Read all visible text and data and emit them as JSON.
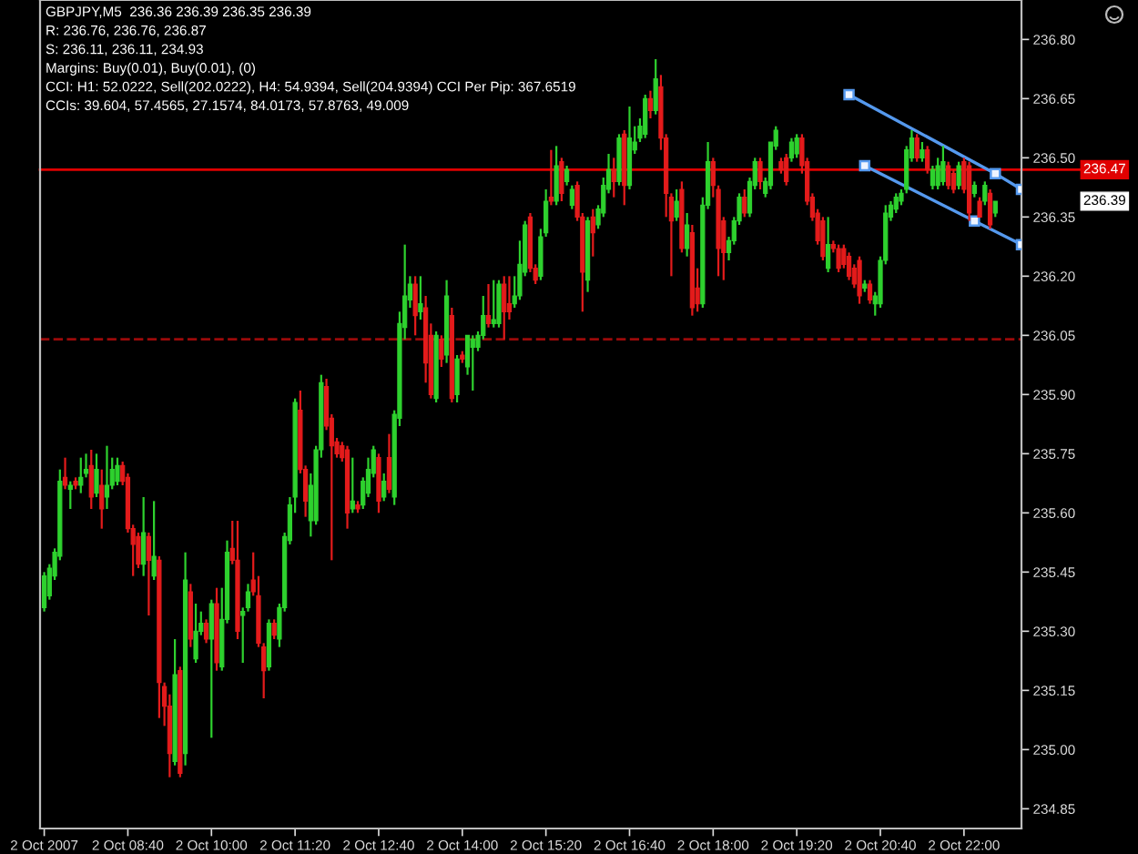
{
  "chart_data": {
    "type": "candlestick",
    "title": "GBPJPY,M5  236.36 236.39 236.35 236.39",
    "annotations": [
      "R: 236.76, 236.76, 236.87",
      "S: 236.11, 236.11, 234.93",
      "Margins: Buy(0.01), Buy(0.01), (0)",
      "CCI: H1: 52.0222, Sell(202.0222), H4: 54.9394, Sell(204.9394) CCI Per Pip: 367.6519",
      "CCIs: 39.604, 57.4565, 27.1574, 84.0173, 57.8763, 49.009",
      "236.39"
    ],
    "x": [
      "2007-10-02T07:20",
      "2007-10-02T07:25",
      "2007-10-02T07:30",
      "2007-10-02T07:35",
      "2007-10-02T07:40",
      "2007-10-02T07:45",
      "2007-10-02T07:50",
      "2007-10-02T07:55",
      "2007-10-02T08:00",
      "2007-10-02T08:05",
      "2007-10-02T08:10",
      "2007-10-02T08:15",
      "2007-10-02T08:20",
      "2007-10-02T08:25",
      "2007-10-02T08:30",
      "2007-10-02T08:35",
      "2007-10-02T08:40",
      "2007-10-02T08:45",
      "2007-10-02T08:50",
      "2007-10-02T08:55",
      "2007-10-02T09:00",
      "2007-10-02T09:05",
      "2007-10-02T09:10",
      "2007-10-02T09:15",
      "2007-10-02T09:20",
      "2007-10-02T09:25",
      "2007-10-02T09:30",
      "2007-10-02T09:35",
      "2007-10-02T09:40",
      "2007-10-02T09:45",
      "2007-10-02T09:50",
      "2007-10-02T09:55",
      "2007-10-02T10:00",
      "2007-10-02T10:05",
      "2007-10-02T10:10",
      "2007-10-02T10:15",
      "2007-10-02T10:20",
      "2007-10-02T10:25",
      "2007-10-02T10:30",
      "2007-10-02T10:35",
      "2007-10-02T10:40",
      "2007-10-02T10:45",
      "2007-10-02T10:50",
      "2007-10-02T10:55",
      "2007-10-02T11:00",
      "2007-10-02T11:05",
      "2007-10-02T11:10",
      "2007-10-02T11:15",
      "2007-10-02T11:20",
      "2007-10-02T11:25",
      "2007-10-02T11:30",
      "2007-10-02T11:35",
      "2007-10-02T11:40",
      "2007-10-02T11:45",
      "2007-10-02T11:50",
      "2007-10-02T11:55",
      "2007-10-02T12:00",
      "2007-10-02T12:05",
      "2007-10-02T12:10",
      "2007-10-02T12:15",
      "2007-10-02T12:20",
      "2007-10-02T12:25",
      "2007-10-02T12:30",
      "2007-10-02T12:35",
      "2007-10-02T12:40",
      "2007-10-02T12:45",
      "2007-10-02T12:50",
      "2007-10-02T12:55",
      "2007-10-02T13:00",
      "2007-10-02T13:05",
      "2007-10-02T13:10",
      "2007-10-02T13:15",
      "2007-10-02T13:20",
      "2007-10-02T13:25",
      "2007-10-02T13:30",
      "2007-10-02T13:35",
      "2007-10-02T13:40",
      "2007-10-02T13:45",
      "2007-10-02T13:50",
      "2007-10-02T13:55",
      "2007-10-02T14:00",
      "2007-10-02T14:05",
      "2007-10-02T14:10",
      "2007-10-02T14:15",
      "2007-10-02T14:20",
      "2007-10-02T14:25",
      "2007-10-02T14:30",
      "2007-10-02T14:35",
      "2007-10-02T14:40",
      "2007-10-02T14:45",
      "2007-10-02T14:50",
      "2007-10-02T14:55",
      "2007-10-02T15:00",
      "2007-10-02T15:05",
      "2007-10-02T15:10",
      "2007-10-02T15:15",
      "2007-10-02T15:20",
      "2007-10-02T15:25",
      "2007-10-02T15:30",
      "2007-10-02T15:35",
      "2007-10-02T15:40",
      "2007-10-02T15:45",
      "2007-10-02T15:50",
      "2007-10-02T15:55",
      "2007-10-02T16:00",
      "2007-10-02T16:05",
      "2007-10-02T16:10",
      "2007-10-02T16:15",
      "2007-10-02T16:20",
      "2007-10-02T16:25",
      "2007-10-02T16:30",
      "2007-10-02T16:35",
      "2007-10-02T16:40",
      "2007-10-02T16:45",
      "2007-10-02T16:50",
      "2007-10-02T16:55",
      "2007-10-02T17:00",
      "2007-10-02T17:05",
      "2007-10-02T17:10",
      "2007-10-02T17:15",
      "2007-10-02T17:20",
      "2007-10-02T17:25",
      "2007-10-02T17:30",
      "2007-10-02T17:35",
      "2007-10-02T17:40",
      "2007-10-02T17:45",
      "2007-10-02T17:50",
      "2007-10-02T17:55",
      "2007-10-02T18:00",
      "2007-10-02T18:05",
      "2007-10-02T18:10",
      "2007-10-02T18:15",
      "2007-10-02T18:20",
      "2007-10-02T18:25",
      "2007-10-02T18:30",
      "2007-10-02T18:35",
      "2007-10-02T18:40",
      "2007-10-02T18:45",
      "2007-10-02T18:50",
      "2007-10-02T18:55",
      "2007-10-02T19:00",
      "2007-10-02T19:05",
      "2007-10-02T19:10",
      "2007-10-02T19:15",
      "2007-10-02T19:20",
      "2007-10-02T19:25",
      "2007-10-02T19:30",
      "2007-10-02T19:35",
      "2007-10-02T19:40",
      "2007-10-02T19:45",
      "2007-10-02T19:50",
      "2007-10-02T19:55",
      "2007-10-02T20:00",
      "2007-10-02T20:05",
      "2007-10-02T20:10",
      "2007-10-02T20:15",
      "2007-10-02T20:20",
      "2007-10-02T20:25",
      "2007-10-02T20:30",
      "2007-10-02T20:35",
      "2007-10-02T20:40",
      "2007-10-02T20:45",
      "2007-10-02T20:50",
      "2007-10-02T20:55",
      "2007-10-02T21:00",
      "2007-10-02T21:05",
      "2007-10-02T21:10",
      "2007-10-02T21:15",
      "2007-10-02T21:20",
      "2007-10-02T21:25",
      "2007-10-02T21:30",
      "2007-10-02T21:35",
      "2007-10-02T21:40",
      "2007-10-02T21:45",
      "2007-10-02T21:50",
      "2007-10-02T21:55",
      "2007-10-02T22:00",
      "2007-10-02T22:05",
      "2007-10-02T22:10",
      "2007-10-02T22:15",
      "2007-10-02T22:20",
      "2007-10-02T22:25",
      "2007-10-02T22:30"
    ],
    "ohlc": [
      [
        235.36,
        235.45,
        235.35,
        235.44
      ],
      [
        235.39,
        235.47,
        235.38,
        235.46
      ],
      [
        235.44,
        235.51,
        235.43,
        235.5
      ],
      [
        235.49,
        235.71,
        235.48,
        235.68
      ],
      [
        235.69,
        235.74,
        235.66,
        235.67
      ],
      [
        235.66,
        235.68,
        235.61,
        235.67
      ],
      [
        235.68,
        235.69,
        235.66,
        235.67
      ],
      [
        235.67,
        235.74,
        235.65,
        235.69
      ],
      [
        235.7,
        235.75,
        235.69,
        235.71
      ],
      [
        235.72,
        235.76,
        235.61,
        235.64
      ],
      [
        235.65,
        235.75,
        235.64,
        235.71
      ],
      [
        235.67,
        235.71,
        235.56,
        235.61
      ],
      [
        235.64,
        235.77,
        235.61,
        235.67
      ],
      [
        235.67,
        235.74,
        235.66,
        235.71
      ],
      [
        235.68,
        235.74,
        235.67,
        235.72
      ],
      [
        235.72,
        235.73,
        235.67,
        235.68
      ],
      [
        235.69,
        235.7,
        235.55,
        235.56
      ],
      [
        235.56,
        235.57,
        235.44,
        235.52
      ],
      [
        235.54,
        235.55,
        235.46,
        235.47
      ],
      [
        235.47,
        235.64,
        235.44,
        235.55
      ],
      [
        235.54,
        235.55,
        235.34,
        235.48
      ],
      [
        235.44,
        235.63,
        235.43,
        235.49
      ],
      [
        235.48,
        235.49,
        235.08,
        235.17
      ],
      [
        235.16,
        235.17,
        235.06,
        235.11
      ],
      [
        235.11,
        235.14,
        234.93,
        234.99
      ],
      [
        234.97,
        235.28,
        234.96,
        235.19
      ],
      [
        235.2,
        235.21,
        234.93,
        234.94
      ],
      [
        234.99,
        235.5,
        234.96,
        235.43
      ],
      [
        235.4,
        235.42,
        235.26,
        235.28
      ],
      [
        235.23,
        235.37,
        235.22,
        235.3
      ],
      [
        235.3,
        235.35,
        235.29,
        235.32
      ],
      [
        235.32,
        235.33,
        235.27,
        235.28
      ],
      [
        235.28,
        235.38,
        235.03,
        235.37
      ],
      [
        235.37,
        235.41,
        235.2,
        235.22
      ],
      [
        235.21,
        235.41,
        235.2,
        235.33
      ],
      [
        235.33,
        235.53,
        235.32,
        235.5
      ],
      [
        235.51,
        235.58,
        235.47,
        235.48
      ],
      [
        235.48,
        235.58,
        235.28,
        235.3
      ],
      [
        235.34,
        235.36,
        235.22,
        235.35
      ],
      [
        235.36,
        235.42,
        235.35,
        235.4
      ],
      [
        235.43,
        235.5,
        235.39,
        235.4
      ],
      [
        235.39,
        235.44,
        235.26,
        235.27
      ],
      [
        235.26,
        235.27,
        235.13,
        235.2
      ],
      [
        235.21,
        235.33,
        235.2,
        235.32
      ],
      [
        235.32,
        235.33,
        235.28,
        235.29
      ],
      [
        235.28,
        235.37,
        235.26,
        235.36
      ],
      [
        235.36,
        235.55,
        235.35,
        235.54
      ],
      [
        235.53,
        235.64,
        235.52,
        235.62
      ],
      [
        235.64,
        235.89,
        235.6,
        235.88
      ],
      [
        235.86,
        235.91,
        235.7,
        235.71
      ],
      [
        235.71,
        235.72,
        235.59,
        235.63
      ],
      [
        235.58,
        235.7,
        235.54,
        235.67
      ],
      [
        235.58,
        235.77,
        235.57,
        235.76
      ],
      [
        235.76,
        235.95,
        235.74,
        235.93
      ],
      [
        235.92,
        235.94,
        235.81,
        235.82
      ],
      [
        235.84,
        235.85,
        235.48,
        235.77
      ],
      [
        235.78,
        235.79,
        235.74,
        235.75
      ],
      [
        235.77,
        235.78,
        235.73,
        235.74
      ],
      [
        235.76,
        235.77,
        235.56,
        235.6
      ],
      [
        235.61,
        235.74,
        235.6,
        235.63
      ],
      [
        235.62,
        235.63,
        235.6,
        235.61
      ],
      [
        235.62,
        235.69,
        235.61,
        235.68
      ],
      [
        235.65,
        235.74,
        235.64,
        235.71
      ],
      [
        235.7,
        235.77,
        235.69,
        235.76
      ],
      [
        235.74,
        235.75,
        235.6,
        235.63
      ],
      [
        235.64,
        235.7,
        235.63,
        235.68
      ],
      [
        235.74,
        235.8,
        235.65,
        235.66
      ],
      [
        235.64,
        235.86,
        235.62,
        235.85
      ],
      [
        235.84,
        236.11,
        235.82,
        236.08
      ],
      [
        236.07,
        236.28,
        236.04,
        236.15
      ],
      [
        236.14,
        236.2,
        236.12,
        236.18
      ],
      [
        236.18,
        236.2,
        236.05,
        236.1
      ],
      [
        236.11,
        236.2,
        236.09,
        236.13
      ],
      [
        236.12,
        236.15,
        235.93,
        235.98
      ],
      [
        236.05,
        236.08,
        235.89,
        235.9
      ],
      [
        235.89,
        236.06,
        235.88,
        236.05
      ],
      [
        236.04,
        236.05,
        235.97,
        235.99
      ],
      [
        236.0,
        236.19,
        235.98,
        236.15
      ],
      [
        236.1,
        236.12,
        235.88,
        235.89
      ],
      [
        235.9,
        236.0,
        235.88,
        235.99
      ],
      [
        236.0,
        236.01,
        235.98,
        235.99
      ],
      [
        235.97,
        236.05,
        235.95,
        236.05
      ],
      [
        236.02,
        236.05,
        235.91,
        236.04
      ],
      [
        236.02,
        236.06,
        236.01,
        236.05
      ],
      [
        236.05,
        236.15,
        236.04,
        236.1
      ],
      [
        236.1,
        236.18,
        236.07,
        236.08
      ],
      [
        236.08,
        236.19,
        236.07,
        236.09
      ],
      [
        236.08,
        236.19,
        236.07,
        236.18
      ],
      [
        236.18,
        236.2,
        236.04,
        236.11
      ],
      [
        236.13,
        236.2,
        236.09,
        236.11
      ],
      [
        236.13,
        236.2,
        236.12,
        236.15
      ],
      [
        236.15,
        236.29,
        236.14,
        236.23
      ],
      [
        236.21,
        236.34,
        236.2,
        236.33
      ],
      [
        236.35,
        236.36,
        236.21,
        236.22
      ],
      [
        236.22,
        236.23,
        236.18,
        236.19
      ],
      [
        236.2,
        236.32,
        236.19,
        236.3
      ],
      [
        236.31,
        236.42,
        236.3,
        236.39
      ],
      [
        236.4,
        236.52,
        236.38,
        236.39
      ],
      [
        236.39,
        236.53,
        236.38,
        236.48
      ],
      [
        236.49,
        236.5,
        236.39,
        236.41
      ],
      [
        236.44,
        236.48,
        236.43,
        236.47
      ],
      [
        236.38,
        236.43,
        236.37,
        236.42
      ],
      [
        236.43,
        236.44,
        236.34,
        236.35
      ],
      [
        236.35,
        236.36,
        236.11,
        236.21
      ],
      [
        236.19,
        236.35,
        236.16,
        236.34
      ],
      [
        236.35,
        236.37,
        236.25,
        236.31
      ],
      [
        236.33,
        236.38,
        236.32,
        236.37
      ],
      [
        236.36,
        236.45,
        236.35,
        236.43
      ],
      [
        236.42,
        236.51,
        236.41,
        236.47
      ],
      [
        236.47,
        236.5,
        236.4,
        236.44
      ],
      [
        236.44,
        236.56,
        236.43,
        236.55
      ],
      [
        236.56,
        236.57,
        236.38,
        236.43
      ],
      [
        236.43,
        236.63,
        236.42,
        236.55
      ],
      [
        236.52,
        236.58,
        236.51,
        236.54
      ],
      [
        236.55,
        236.6,
        236.54,
        236.58
      ],
      [
        236.56,
        236.66,
        236.55,
        236.65
      ],
      [
        236.65,
        236.67,
        236.6,
        236.62
      ],
      [
        236.62,
        236.75,
        236.61,
        236.7
      ],
      [
        236.68,
        236.71,
        236.52,
        236.55
      ],
      [
        236.55,
        236.56,
        236.35,
        236.41
      ],
      [
        236.4,
        236.41,
        236.2,
        236.34
      ],
      [
        236.35,
        236.42,
        236.34,
        236.39
      ],
      [
        236.42,
        236.44,
        236.26,
        236.27
      ],
      [
        236.27,
        236.36,
        236.25,
        236.33
      ],
      [
        236.31,
        236.33,
        236.1,
        236.12
      ],
      [
        236.17,
        236.22,
        236.11,
        236.13
      ],
      [
        236.13,
        236.4,
        236.12,
        236.38
      ],
      [
        236.38,
        236.54,
        236.37,
        236.49
      ],
      [
        236.49,
        236.5,
        236.4,
        236.43
      ],
      [
        236.42,
        236.43,
        236.2,
        236.27
      ],
      [
        236.34,
        236.35,
        236.19,
        236.26
      ],
      [
        236.26,
        236.3,
        236.24,
        236.29
      ],
      [
        236.29,
        236.35,
        236.28,
        236.34
      ],
      [
        236.34,
        236.41,
        236.33,
        236.4
      ],
      [
        236.4,
        236.42,
        236.35,
        236.36
      ],
      [
        236.36,
        236.45,
        236.35,
        236.44
      ],
      [
        236.43,
        236.5,
        236.42,
        236.49
      ],
      [
        236.49,
        236.5,
        236.42,
        236.44
      ],
      [
        236.41,
        236.45,
        236.4,
        236.44
      ],
      [
        236.43,
        236.54,
        236.42,
        236.54
      ],
      [
        236.53,
        236.58,
        236.52,
        236.57
      ],
      [
        236.49,
        236.5,
        236.46,
        236.47
      ],
      [
        236.5,
        236.51,
        236.43,
        236.44
      ],
      [
        236.5,
        236.55,
        236.49,
        236.54
      ],
      [
        236.51,
        236.56,
        236.5,
        236.55
      ],
      [
        236.55,
        236.56,
        236.46,
        236.48
      ],
      [
        236.49,
        236.5,
        236.38,
        236.39
      ],
      [
        236.4,
        236.41,
        236.34,
        236.35
      ],
      [
        236.36,
        236.37,
        236.28,
        236.29
      ],
      [
        236.34,
        236.35,
        236.24,
        236.25
      ],
      [
        236.22,
        236.35,
        236.21,
        236.28
      ],
      [
        236.28,
        236.29,
        236.26,
        236.27
      ],
      [
        236.27,
        236.28,
        236.21,
        236.22
      ],
      [
        236.27,
        236.28,
        236.22,
        236.23
      ],
      [
        236.25,
        236.26,
        236.19,
        236.2
      ],
      [
        236.22,
        236.23,
        236.17,
        236.18
      ],
      [
        236.24,
        236.25,
        236.13,
        236.15
      ],
      [
        236.17,
        236.19,
        236.16,
        236.18
      ],
      [
        236.18,
        236.19,
        236.13,
        236.14
      ],
      [
        236.13,
        236.16,
        236.1,
        236.15
      ],
      [
        236.13,
        236.25,
        236.12,
        236.24
      ],
      [
        236.24,
        236.38,
        236.23,
        236.36
      ],
      [
        236.35,
        236.39,
        236.34,
        236.38
      ],
      [
        236.37,
        236.41,
        236.36,
        236.4
      ],
      [
        236.39,
        236.42,
        236.38,
        236.41
      ],
      [
        236.42,
        236.53,
        236.41,
        236.52
      ],
      [
        236.5,
        236.57,
        236.49,
        236.55
      ],
      [
        236.55,
        236.56,
        236.49,
        236.5
      ],
      [
        236.5,
        236.54,
        236.49,
        236.52
      ],
      [
        236.52,
        236.53,
        236.46,
        236.47
      ],
      [
        236.43,
        236.48,
        236.42,
        236.47
      ],
      [
        236.43,
        236.5,
        236.42,
        236.48
      ],
      [
        236.44,
        236.53,
        236.43,
        236.49
      ],
      [
        236.48,
        236.49,
        236.42,
        236.43
      ],
      [
        236.46,
        236.47,
        236.41,
        236.42
      ],
      [
        236.43,
        236.49,
        236.42,
        236.48
      ],
      [
        236.49,
        236.5,
        236.41,
        236.42
      ],
      [
        236.48,
        236.49,
        236.34,
        236.36
      ],
      [
        236.41,
        236.44,
        236.4,
        236.43
      ],
      [
        236.39,
        236.4,
        236.35,
        236.35
      ],
      [
        236.39,
        236.44,
        236.38,
        236.43
      ],
      [
        236.41,
        236.42,
        236.32,
        236.33
      ],
      [
        236.36,
        236.39,
        236.35,
        236.39
      ]
    ],
    "colors": [
      "#2ed12e",
      "#2ed12e",
      "#2ed12e",
      "#2ed12e",
      "#e31b1b",
      "#2ed12e",
      "#e31b1b",
      "#2ed12e",
      "#2ed12e",
      "#e31b1b",
      "#2ed12e",
      "#e31b1b",
      "#2ed12e",
      "#2ed12e",
      "#2ed12e",
      "#e31b1b",
      "#e31b1b",
      "#e31b1b",
      "#e31b1b",
      "#2ed12e",
      "#e31b1b",
      "#2ed12e",
      "#e31b1b",
      "#e31b1b",
      "#e31b1b",
      "#2ed12e",
      "#e31b1b",
      "#2ed12e",
      "#e31b1b",
      "#2ed12e",
      "#2ed12e",
      "#e31b1b",
      "#2ed12e",
      "#e31b1b",
      "#2ed12e",
      "#2ed12e",
      "#e31b1b",
      "#e31b1b",
      "#2ed12e",
      "#2ed12e",
      "#e31b1b",
      "#e31b1b",
      "#e31b1b",
      "#2ed12e",
      "#e31b1b",
      "#2ed12e",
      "#2ed12e",
      "#2ed12e",
      "#2ed12e",
      "#e31b1b",
      "#e31b1b",
      "#2ed12e",
      "#2ed12e",
      "#2ed12e",
      "#e31b1b",
      "#e31b1b",
      "#e31b1b",
      "#e31b1b",
      "#e31b1b",
      "#2ed12e",
      "#e31b1b",
      "#2ed12e",
      "#2ed12e",
      "#2ed12e",
      "#e31b1b",
      "#2ed12e",
      "#e31b1b",
      "#2ed12e",
      "#2ed12e",
      "#2ed12e",
      "#2ed12e",
      "#e31b1b",
      "#2ed12e",
      "#e31b1b",
      "#e31b1b",
      "#2ed12e",
      "#e31b1b",
      "#2ed12e",
      "#e31b1b",
      "#2ed12e",
      "#e31b1b",
      "#2ed12e",
      "#2ed12e",
      "#2ed12e",
      "#2ed12e",
      "#e31b1b",
      "#2ed12e",
      "#2ed12e",
      "#e31b1b",
      "#e31b1b",
      "#2ed12e",
      "#2ed12e",
      "#2ed12e",
      "#e31b1b",
      "#e31b1b",
      "#2ed12e",
      "#2ed12e",
      "#e31b1b",
      "#2ed12e",
      "#e31b1b",
      "#2ed12e",
      "#2ed12e",
      "#e31b1b",
      "#e31b1b",
      "#2ed12e",
      "#e31b1b",
      "#2ed12e",
      "#2ed12e",
      "#2ed12e",
      "#e31b1b",
      "#2ed12e",
      "#e31b1b",
      "#2ed12e",
      "#2ed12e",
      "#2ed12e",
      "#2ed12e",
      "#e31b1b",
      "#2ed12e",
      "#e31b1b",
      "#e31b1b",
      "#e31b1b",
      "#2ed12e",
      "#e31b1b",
      "#2ed12e",
      "#e31b1b",
      "#e31b1b",
      "#2ed12e",
      "#2ed12e",
      "#e31b1b",
      "#e31b1b",
      "#e31b1b",
      "#2ed12e",
      "#2ed12e",
      "#2ed12e",
      "#e31b1b",
      "#2ed12e",
      "#2ed12e",
      "#e31b1b",
      "#2ed12e",
      "#2ed12e",
      "#2ed12e",
      "#e31b1b",
      "#e31b1b",
      "#2ed12e",
      "#2ed12e",
      "#e31b1b",
      "#e31b1b",
      "#e31b1b",
      "#e31b1b",
      "#e31b1b",
      "#2ed12e",
      "#e31b1b",
      "#e31b1b",
      "#e31b1b",
      "#e31b1b",
      "#e31b1b",
      "#e31b1b",
      "#2ed12e",
      "#e31b1b",
      "#2ed12e",
      "#2ed12e",
      "#2ed12e",
      "#2ed12e",
      "#2ed12e",
      "#2ed12e",
      "#2ed12e",
      "#2ed12e",
      "#e31b1b",
      "#2ed12e",
      "#e31b1b",
      "#2ed12e",
      "#2ed12e",
      "#2ed12e",
      "#e31b1b",
      "#e31b1b",
      "#2ed12e",
      "#e31b1b",
      "#e31b1b",
      "#2ed12e",
      "#e31b1b",
      "#2ed12e",
      "#e31b1b",
      "#2ed12e"
    ],
    "series": [
      {
        "type": "line",
        "x": [
          "2007-10-02T20:10",
          "2007-10-02T22:30",
          "2007-10-02T22:55"
        ],
        "values": [
          236.66,
          236.46,
          236.42
        ],
        "color": "#5599ee",
        "marker": "square"
      },
      {
        "type": "line",
        "x": [
          "2007-10-02T20:25",
          "2007-10-02T22:10",
          "2007-10-02T22:55"
        ],
        "values": [
          236.48,
          236.34,
          236.28
        ],
        "color": "#5599ee",
        "marker": "square"
      }
    ],
    "ref_lines": [
      {
        "axis": "y",
        "value": 236.47,
        "label": "236.47",
        "color": "#e00000",
        "line_style": "solid"
      },
      {
        "axis": "y",
        "value": 236.04,
        "color": "#9b0a0a",
        "line_style": "dashed"
      }
    ],
    "xlim": [
      "2007-10-02T07:16",
      "2007-10-02T22:55"
    ],
    "xticks": [
      {
        "value": "2007-10-02T07:20",
        "label": "2 Oct 2007"
      },
      {
        "value": "2007-10-02T08:40",
        "label": "2 Oct 08:40"
      },
      {
        "value": "2007-10-02T10:00",
        "label": "2 Oct 10:00"
      },
      {
        "value": "2007-10-02T11:20",
        "label": "2 Oct 11:20"
      },
      {
        "value": "2007-10-02T12:40",
        "label": "2 Oct 12:40"
      },
      {
        "value": "2007-10-02T14:00",
        "label": "2 Oct 14:00"
      },
      {
        "value": "2007-10-02T15:20",
        "label": "2 Oct 15:20"
      },
      {
        "value": "2007-10-02T16:40",
        "label": "2 Oct 16:40"
      },
      {
        "value": "2007-10-02T18:00",
        "label": "2 Oct 18:00"
      },
      {
        "value": "2007-10-02T19:20",
        "label": "2 Oct 19:20"
      },
      {
        "value": "2007-10-02T20:40",
        "label": "2 Oct 20:40"
      },
      {
        "value": "2007-10-02T22:00",
        "label": "2 Oct 22:00"
      }
    ],
    "ylim": [
      234.8,
      236.9
    ],
    "yticks": [
      {
        "value": 236.8,
        "label": "236.80"
      },
      236.65,
      {
        "value": 236.5,
        "label": "236.50"
      },
      236.35,
      {
        "value": 236.2,
        "label": "236.20"
      },
      236.05,
      {
        "value": 235.9,
        "label": "235.90"
      },
      235.75,
      {
        "value": 235.6,
        "label": "235.60"
      },
      235.45,
      {
        "value": 235.3,
        "label": "235.30"
      },
      235.15,
      {
        "value": 235.0,
        "label": "235.00"
      },
      234.85
    ]
  }
}
